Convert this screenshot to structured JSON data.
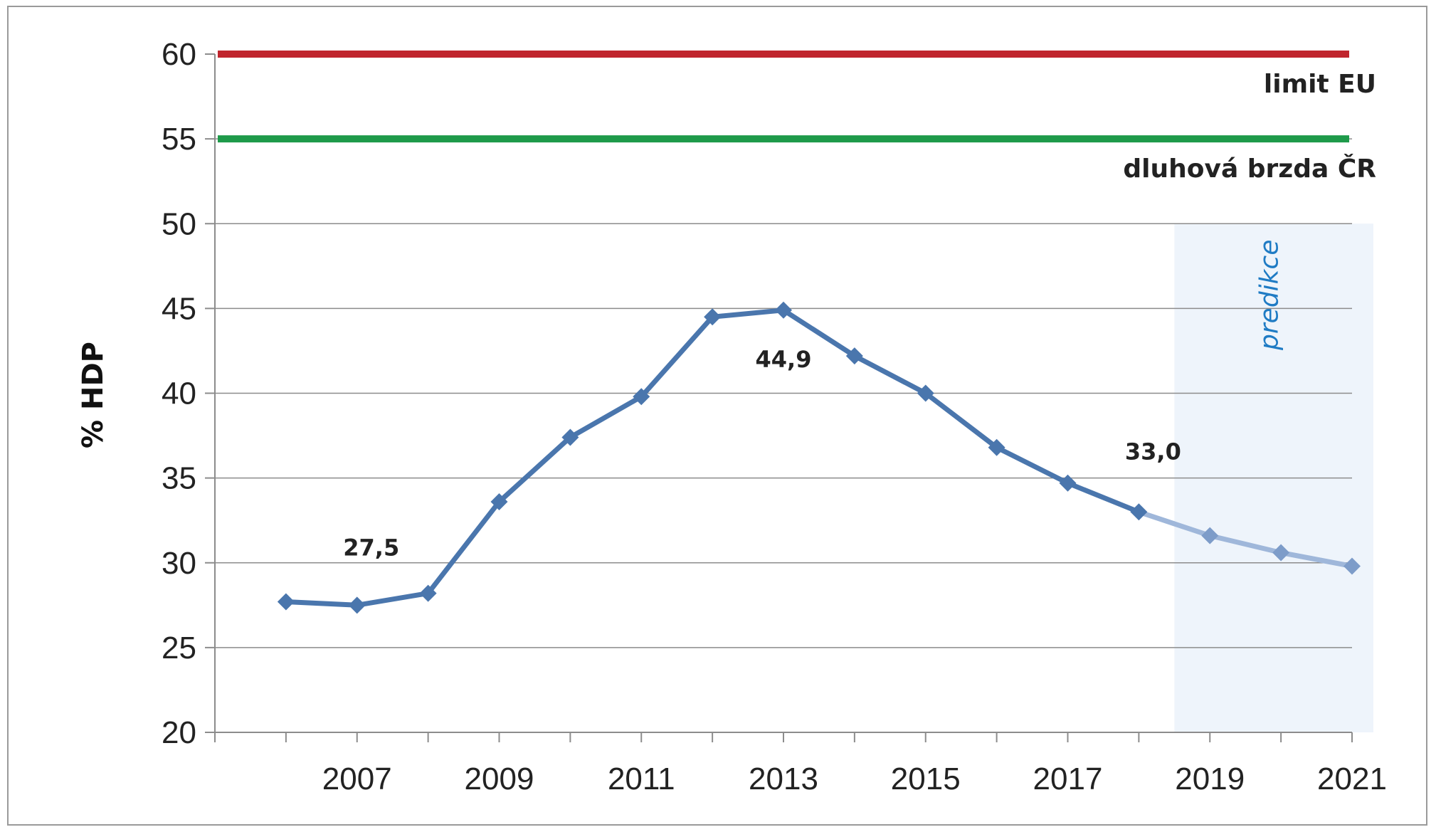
{
  "chart_data": {
    "type": "line",
    "ylabel": "% HDP",
    "ylim": [
      20,
      60
    ],
    "yticks": [
      "20",
      "25",
      "30",
      "35",
      "40",
      "45",
      "50",
      "55",
      "60"
    ],
    "x": [
      2006,
      2007,
      2008,
      2009,
      2010,
      2011,
      2012,
      2013,
      2014,
      2015,
      2016,
      2017,
      2018,
      2019,
      2020,
      2021
    ],
    "xtick_labels": [
      "2007",
      "2009",
      "2011",
      "2013",
      "2015",
      "2017",
      "2019",
      "2021"
    ],
    "series": [
      {
        "values": [
          27.7,
          27.5,
          28.2,
          33.6,
          37.4,
          39.8,
          44.5,
          44.9,
          42.2,
          40.0,
          36.8,
          34.7,
          33.0,
          31.6,
          30.6,
          29.8
        ],
        "color": "#4a76ad",
        "forecast_from": 2018
      }
    ],
    "reference_lines": [
      {
        "label": "limit EU",
        "value": 60,
        "color": "#c0252d"
      },
      {
        "label": "dluhová brzda ČR",
        "value": 55,
        "color": "#1e9a4a"
      }
    ],
    "data_labels": [
      {
        "x": 2007,
        "y": 27.5,
        "text": "27,5"
      },
      {
        "x": 2013,
        "y": 44.9,
        "text": "44,9"
      },
      {
        "x": 2018,
        "y": 33.0,
        "text": "33,0"
      }
    ],
    "forecast_region": {
      "from": 2018.5,
      "to": 2021.3,
      "label": "predikce",
      "color": "#eef4fb"
    },
    "grid": true,
    "legend": "none"
  }
}
